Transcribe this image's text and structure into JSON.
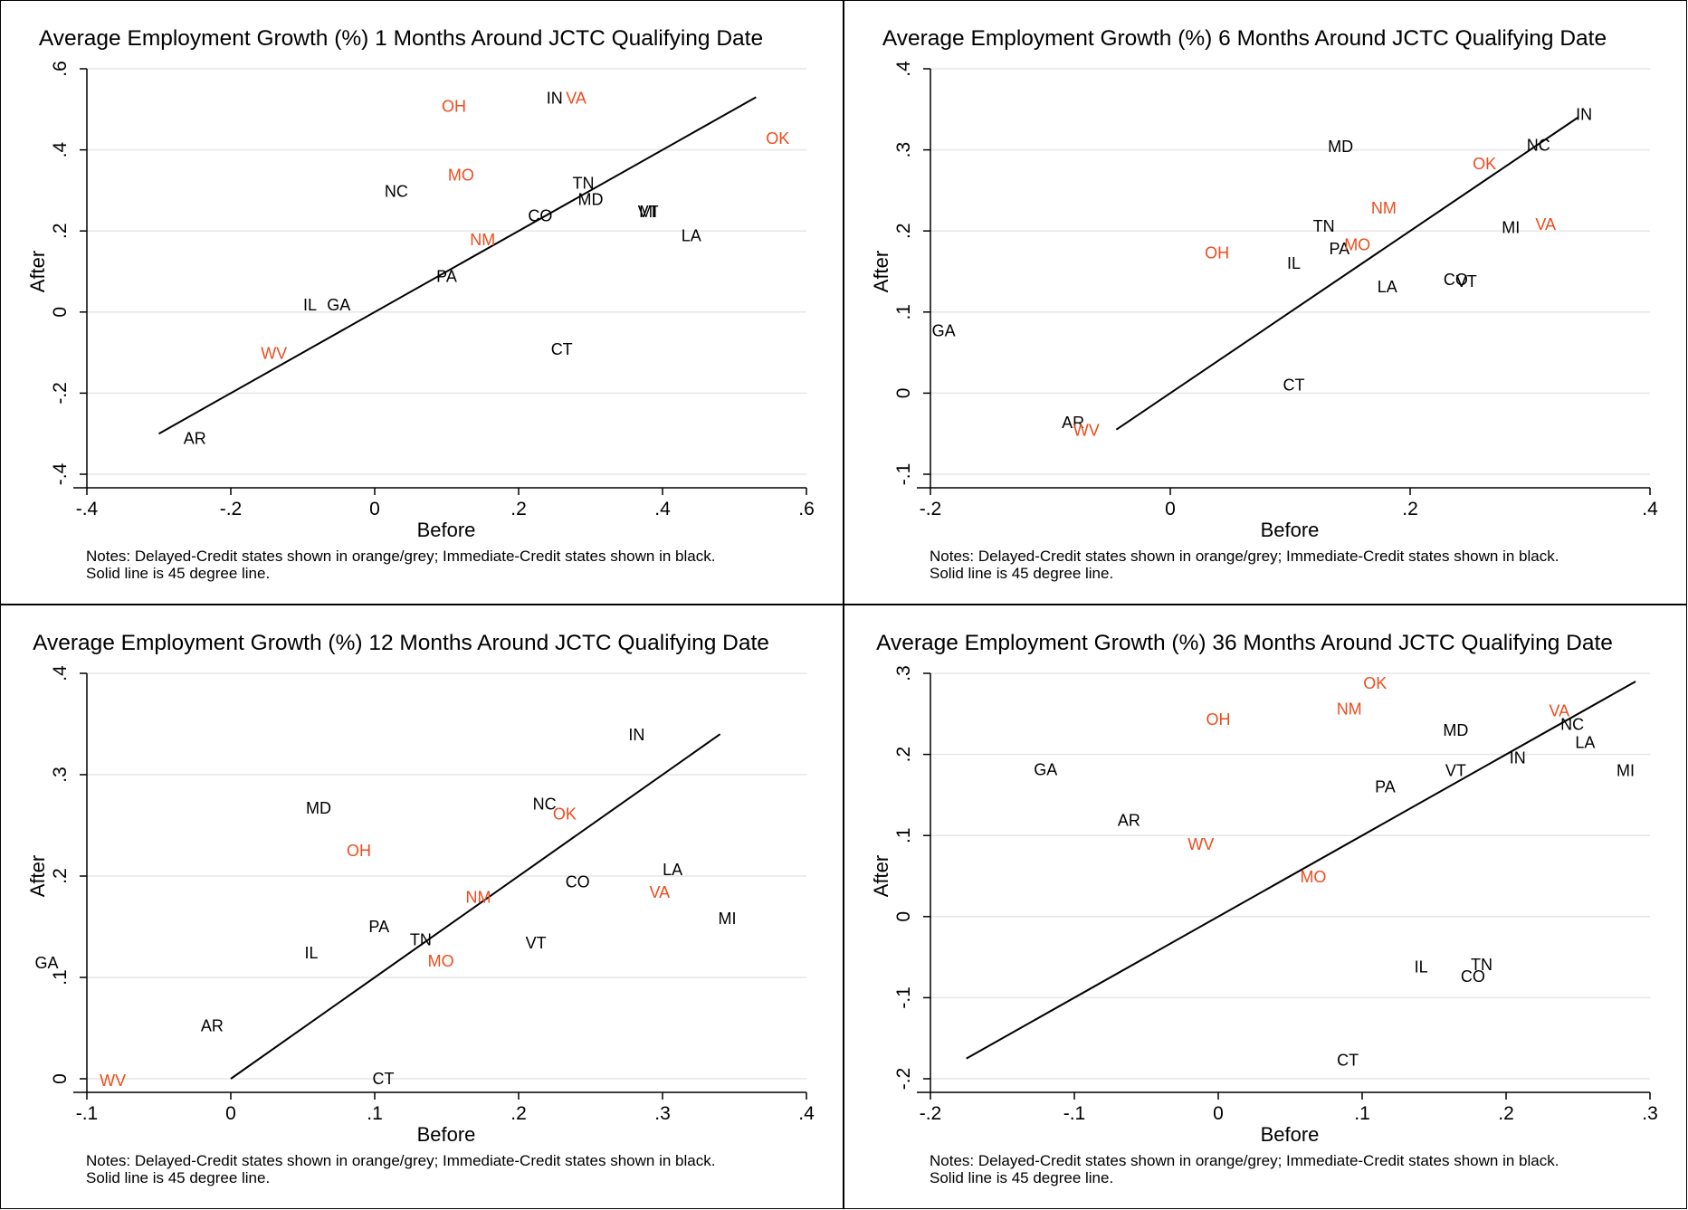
{
  "colors": {
    "delayed": "#ee4b1c",
    "immediate": "#000000",
    "grid": "#e6e6e6",
    "axis": "#000000"
  },
  "notes": "Notes: Delayed-Credit states shown in orange/grey; Immediate-Credit states shown in black.\nSolid line is 45 degree line.",
  "chart_data": [
    {
      "type": "scatter",
      "title": "Average Employment Growth (%) 1 Months Around JCTC Qualifying Date",
      "xlabel": "Before",
      "ylabel": "After",
      "xlim": [
        -0.4,
        0.6
      ],
      "ylim": [
        -0.4,
        0.6
      ],
      "xticks": [
        -0.4,
        -0.2,
        0,
        0.2,
        0.4,
        0.6
      ],
      "xtick_labels": [
        "-.4",
        "-.2",
        "0",
        ".2",
        ".4",
        ".6"
      ],
      "yticks": [
        -0.4,
        -0.2,
        0,
        0.2,
        0.4,
        0.6
      ],
      "ytick_labels": [
        "-.4",
        "-.2",
        "0",
        ".2",
        ".4",
        ".6"
      ],
      "grid": true,
      "line45": [
        -0.3,
        0.53
      ],
      "points": [
        {
          "label": "OH",
          "x": 0.11,
          "y": 0.51,
          "group": "delayed"
        },
        {
          "label": "IN",
          "x": 0.25,
          "y": 0.53,
          "group": "immediate"
        },
        {
          "label": "VA",
          "x": 0.28,
          "y": 0.53,
          "group": "delayed"
        },
        {
          "label": "OK",
          "x": 0.56,
          "y": 0.43,
          "group": "delayed"
        },
        {
          "label": "MO",
          "x": 0.12,
          "y": 0.34,
          "group": "delayed"
        },
        {
          "label": "NC",
          "x": 0.03,
          "y": 0.3,
          "group": "immediate"
        },
        {
          "label": "TN",
          "x": 0.29,
          "y": 0.32,
          "group": "immediate"
        },
        {
          "label": "MD",
          "x": 0.3,
          "y": 0.28,
          "group": "immediate"
        },
        {
          "label": "MI",
          "x": 0.38,
          "y": 0.25,
          "group": "immediate"
        },
        {
          "label": "VT",
          "x": 0.38,
          "y": 0.25,
          "group": "immediate"
        },
        {
          "label": "CO",
          "x": 0.23,
          "y": 0.24,
          "group": "immediate"
        },
        {
          "label": "NM",
          "x": 0.15,
          "y": 0.18,
          "group": "delayed"
        },
        {
          "label": "LA",
          "x": 0.44,
          "y": 0.19,
          "group": "immediate"
        },
        {
          "label": "PA",
          "x": 0.1,
          "y": 0.09,
          "group": "immediate"
        },
        {
          "label": "IL",
          "x": -0.09,
          "y": 0.02,
          "group": "immediate"
        },
        {
          "label": "GA",
          "x": -0.05,
          "y": 0.02,
          "group": "immediate"
        },
        {
          "label": "CT",
          "x": 0.26,
          "y": -0.09,
          "group": "immediate"
        },
        {
          "label": "WV",
          "x": -0.14,
          "y": -0.1,
          "group": "delayed"
        },
        {
          "label": "AR",
          "x": -0.25,
          "y": -0.31,
          "group": "immediate"
        }
      ]
    },
    {
      "type": "scatter",
      "title": "Average Employment Growth (%) 6 Months Around JCTC Qualifying Date",
      "xlabel": "Before",
      "ylabel": "After",
      "xlim": [
        -0.2,
        0.4
      ],
      "ylim": [
        -0.1,
        0.4
      ],
      "xticks": [
        -0.2,
        0,
        0.2,
        0.4
      ],
      "xtick_labels": [
        "-.2",
        "0",
        ".2",
        ".4"
      ],
      "yticks": [
        -0.1,
        0,
        0.1,
        0.2,
        0.3,
        0.4
      ],
      "ytick_labels": [
        "-.1",
        "0",
        ".1",
        ".2",
        ".3",
        ".4"
      ],
      "grid": true,
      "line45": [
        -0.045,
        0.34
      ],
      "points": [
        {
          "label": "IN",
          "x": 0.345,
          "y": 0.345,
          "group": "immediate"
        },
        {
          "label": "NC",
          "x": 0.307,
          "y": 0.307,
          "group": "immediate"
        },
        {
          "label": "MD",
          "x": 0.142,
          "y": 0.305,
          "group": "immediate"
        },
        {
          "label": "OK",
          "x": 0.262,
          "y": 0.284,
          "group": "delayed"
        },
        {
          "label": "NM",
          "x": 0.178,
          "y": 0.229,
          "group": "delayed"
        },
        {
          "label": "TN",
          "x": 0.128,
          "y": 0.207,
          "group": "immediate"
        },
        {
          "label": "MI",
          "x": 0.284,
          "y": 0.205,
          "group": "immediate"
        },
        {
          "label": "VA",
          "x": 0.313,
          "y": 0.209,
          "group": "delayed"
        },
        {
          "label": "PA",
          "x": 0.141,
          "y": 0.179,
          "group": "immediate"
        },
        {
          "label": "MO",
          "x": 0.156,
          "y": 0.184,
          "group": "delayed"
        },
        {
          "label": "OH",
          "x": 0.039,
          "y": 0.174,
          "group": "delayed"
        },
        {
          "label": "IL",
          "x": 0.103,
          "y": 0.161,
          "group": "immediate"
        },
        {
          "label": "CO",
          "x": 0.238,
          "y": 0.141,
          "group": "immediate"
        },
        {
          "label": "VT",
          "x": 0.247,
          "y": 0.139,
          "group": "immediate"
        },
        {
          "label": "LA",
          "x": 0.181,
          "y": 0.132,
          "group": "immediate"
        },
        {
          "label": "GA",
          "x": -0.189,
          "y": 0.078,
          "group": "immediate"
        },
        {
          "label": "CT",
          "x": 0.103,
          "y": 0.011,
          "group": "immediate"
        },
        {
          "label": "AR",
          "x": -0.081,
          "y": -0.035,
          "group": "immediate"
        },
        {
          "label": "WV",
          "x": -0.07,
          "y": -0.045,
          "group": "delayed"
        }
      ]
    },
    {
      "type": "scatter",
      "title": "Average Employment Growth (%) 12 Months Around JCTC Qualifying Date",
      "xlabel": "Before",
      "ylabel": "After",
      "xlim": [
        -0.1,
        0.4
      ],
      "ylim": [
        0,
        0.4
      ],
      "xticks": [
        -0.1,
        0,
        0.1,
        0.2,
        0.3,
        0.4
      ],
      "xtick_labels": [
        "-.1",
        "0",
        ".1",
        ".2",
        ".3",
        ".4"
      ],
      "yticks": [
        0,
        0.1,
        0.2,
        0.3,
        0.4
      ],
      "ytick_labels": [
        "0",
        ".1",
        ".2",
        ".3",
        ".4"
      ],
      "grid": true,
      "line45": [
        0,
        0.34
      ],
      "points": [
        {
          "label": "IN",
          "x": 0.282,
          "y": 0.34,
          "group": "immediate"
        },
        {
          "label": "MD",
          "x": 0.061,
          "y": 0.268,
          "group": "immediate"
        },
        {
          "label": "NC",
          "x": 0.218,
          "y": 0.272,
          "group": "immediate"
        },
        {
          "label": "OK",
          "x": 0.232,
          "y": 0.262,
          "group": "delayed"
        },
        {
          "label": "OH",
          "x": 0.089,
          "y": 0.226,
          "group": "delayed"
        },
        {
          "label": "LA",
          "x": 0.307,
          "y": 0.207,
          "group": "immediate"
        },
        {
          "label": "CO",
          "x": 0.241,
          "y": 0.195,
          "group": "immediate"
        },
        {
          "label": "NM",
          "x": 0.172,
          "y": 0.18,
          "group": "delayed"
        },
        {
          "label": "VA",
          "x": 0.298,
          "y": 0.185,
          "group": "delayed"
        },
        {
          "label": "MI",
          "x": 0.345,
          "y": 0.159,
          "group": "immediate"
        },
        {
          "label": "PA",
          "x": 0.103,
          "y": 0.151,
          "group": "immediate"
        },
        {
          "label": "TN",
          "x": 0.132,
          "y": 0.138,
          "group": "immediate"
        },
        {
          "label": "VT",
          "x": 0.212,
          "y": 0.135,
          "group": "immediate"
        },
        {
          "label": "IL",
          "x": 0.056,
          "y": 0.125,
          "group": "immediate"
        },
        {
          "label": "MO",
          "x": 0.146,
          "y": 0.117,
          "group": "delayed"
        },
        {
          "label": "GA",
          "x": -0.128,
          "y": 0.115,
          "group": "immediate"
        },
        {
          "label": "AR",
          "x": -0.013,
          "y": 0.053,
          "group": "immediate"
        },
        {
          "label": "CT",
          "x": 0.106,
          "y": 0.001,
          "group": "immediate"
        },
        {
          "label": "WV",
          "x": -0.082,
          "y": -0.001,
          "group": "delayed"
        }
      ]
    },
    {
      "type": "scatter",
      "title": "Average Employment Growth (%) 36 Months Around JCTC Qualifying Date",
      "xlabel": "Before",
      "ylabel": "After",
      "xlim": [
        -0.2,
        0.3
      ],
      "ylim": [
        -0.2,
        0.3
      ],
      "xticks": [
        -0.2,
        -0.1,
        0,
        0.1,
        0.2,
        0.3
      ],
      "xtick_labels": [
        "-.2",
        "-.1",
        "0",
        ".1",
        ".2",
        ".3"
      ],
      "yticks": [
        -0.2,
        -0.1,
        0,
        0.1,
        0.2,
        0.3
      ],
      "ytick_labels": [
        "-.2",
        "-.1",
        "0",
        ".1",
        ".2",
        ".3"
      ],
      "grid": true,
      "line45": [
        -0.175,
        0.29
      ],
      "points": [
        {
          "label": "OK",
          "x": 0.109,
          "y": 0.289,
          "group": "delayed"
        },
        {
          "label": "NM",
          "x": 0.091,
          "y": 0.257,
          "group": "delayed"
        },
        {
          "label": "OH",
          "x": 0.0,
          "y": 0.244,
          "group": "delayed"
        },
        {
          "label": "VA",
          "x": 0.237,
          "y": 0.255,
          "group": "delayed"
        },
        {
          "label": "NC",
          "x": 0.246,
          "y": 0.238,
          "group": "immediate"
        },
        {
          "label": "MD",
          "x": 0.165,
          "y": 0.231,
          "group": "immediate"
        },
        {
          "label": "LA",
          "x": 0.255,
          "y": 0.216,
          "group": "immediate"
        },
        {
          "label": "IN",
          "x": 0.208,
          "y": 0.197,
          "group": "immediate"
        },
        {
          "label": "GA",
          "x": -0.12,
          "y": 0.182,
          "group": "immediate"
        },
        {
          "label": "VT",
          "x": 0.165,
          "y": 0.181,
          "group": "immediate"
        },
        {
          "label": "MI",
          "x": 0.283,
          "y": 0.181,
          "group": "immediate"
        },
        {
          "label": "PA",
          "x": 0.116,
          "y": 0.161,
          "group": "immediate"
        },
        {
          "label": "AR",
          "x": -0.062,
          "y": 0.12,
          "group": "immediate"
        },
        {
          "label": "WV",
          "x": -0.012,
          "y": 0.09,
          "group": "delayed"
        },
        {
          "label": "MO",
          "x": 0.066,
          "y": 0.05,
          "group": "delayed"
        },
        {
          "label": "TN",
          "x": 0.183,
          "y": -0.058,
          "group": "immediate"
        },
        {
          "label": "IL",
          "x": 0.141,
          "y": -0.061,
          "group": "immediate"
        },
        {
          "label": "CO",
          "x": 0.177,
          "y": -0.073,
          "group": "immediate"
        },
        {
          "label": "CT",
          "x": 0.09,
          "y": -0.176,
          "group": "immediate"
        }
      ]
    }
  ]
}
